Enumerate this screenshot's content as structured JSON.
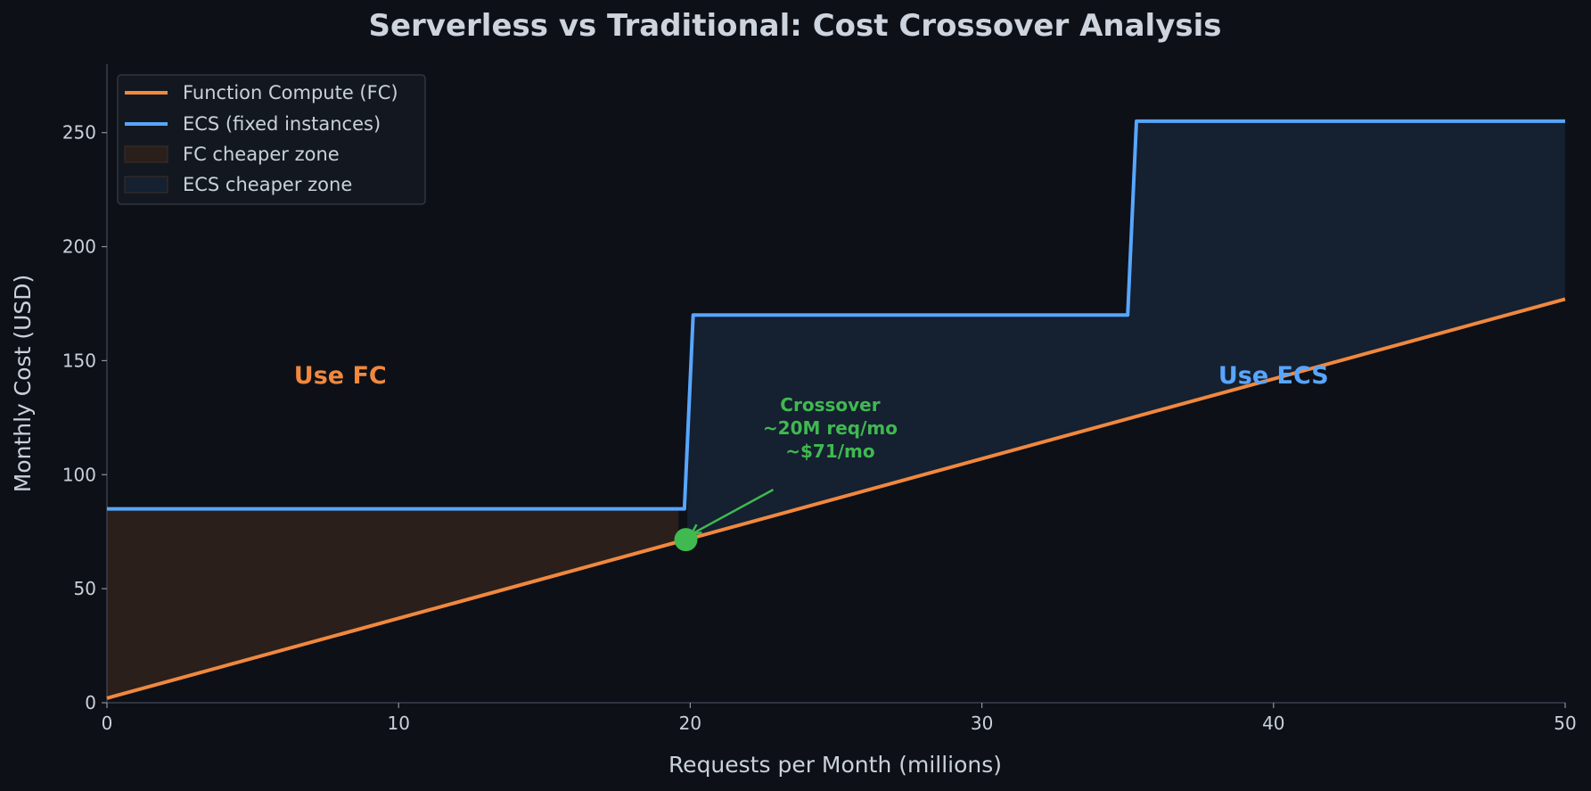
{
  "chart_data": {
    "type": "line",
    "title": "Serverless vs Traditional: Cost Crossover Analysis",
    "xlabel": "Requests per Month (millions)",
    "ylabel": "Monthly Cost (USD)",
    "xlim": [
      0,
      50
    ],
    "ylim": [
      0,
      280
    ],
    "xticks": [
      0,
      10,
      20,
      30,
      40,
      50
    ],
    "yticks": [
      0,
      50,
      100,
      150,
      200,
      250
    ],
    "grid": false,
    "legend_position": "top-left",
    "series": [
      {
        "name": "Function Compute (FC)",
        "color": "#f0883e",
        "x": [
          0,
          50
        ],
        "y": [
          2,
          177
        ]
      },
      {
        "name": "ECS (fixed instances)",
        "color": "#58a6ff",
        "x": [
          0,
          19.8,
          20.1,
          35,
          35.3,
          50
        ],
        "y": [
          85,
          85,
          170,
          170,
          255,
          255
        ]
      }
    ],
    "zones": [
      {
        "name": "FC cheaper zone",
        "color": "#2a1f1b",
        "x_range": [
          0,
          19.6
        ]
      },
      {
        "name": "ECS cheaper zone",
        "color": "#152030",
        "x_range": [
          19.9,
          50
        ]
      }
    ],
    "labels": [
      {
        "text": "Use FC",
        "x": 8,
        "y": 140,
        "color": "#f0883e"
      },
      {
        "text": "Use ECS",
        "x": 40,
        "y": 140,
        "color": "#58a6ff"
      }
    ],
    "crossover": {
      "x": 19.85,
      "y": 71.5,
      "color": "#3fb950",
      "text_lines": [
        "Crossover",
        "~20M req/mo",
        "~$71/mo"
      ],
      "text_x": 24.8,
      "text_y": 120
    }
  }
}
